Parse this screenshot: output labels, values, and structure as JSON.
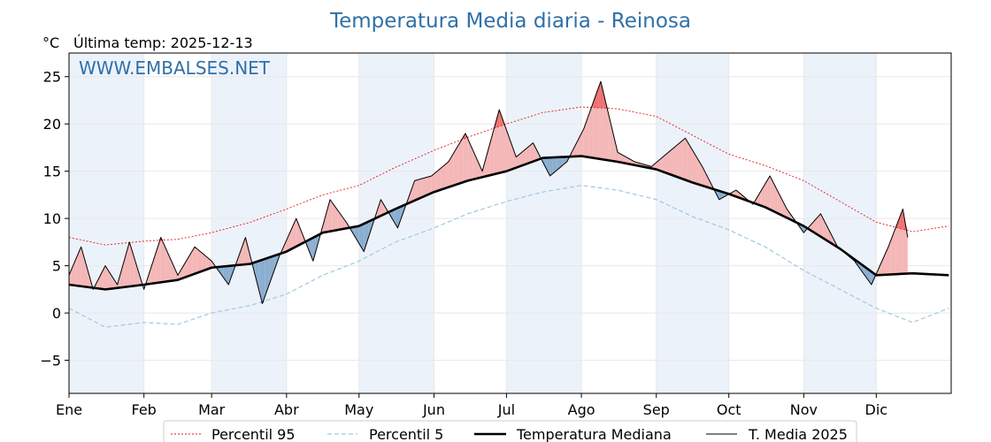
{
  "chart_data": {
    "type": "line",
    "title": "Temperatura Media diaria - Reinosa",
    "ylabel": "°C",
    "subtitle": "Última temp: 2025-12-13",
    "watermark": "WWW.EMBALSES.NET",
    "ylim": [
      -8.5,
      27.5
    ],
    "xlim_days": [
      0,
      365
    ],
    "y_ticks": [
      -5,
      0,
      5,
      10,
      15,
      20,
      25
    ],
    "y_tick_labels": [
      "−5",
      "0",
      "5",
      "10",
      "15",
      "20",
      "25"
    ],
    "x_ticks": [
      "Ene",
      "Feb",
      "Mar",
      "Abr",
      "May",
      "Jun",
      "Jul",
      "Ago",
      "Sep",
      "Oct",
      "Nov",
      "Dic"
    ],
    "x_tick_days": [
      0,
      31,
      59,
      90,
      120,
      151,
      181,
      212,
      243,
      273,
      304,
      334
    ],
    "grid": true,
    "shaded_months": [
      "Ene",
      "Mar",
      "May",
      "Jul",
      "Sep",
      "Nov"
    ],
    "legend_position": "bottom",
    "colors": {
      "p95": "#e41a1c",
      "p5": "#9ecae1",
      "median": "#000000",
      "mean": "#000000",
      "above": "#f4b6b6",
      "above_extreme": "#f07070",
      "below": "#8aaed0",
      "below_extreme": "#1f5f9a",
      "band": "#dfeaf6"
    },
    "series": [
      {
        "name": "Percentil 95",
        "style": "dotted",
        "x": [
          0,
          15,
          31,
          45,
          59,
          75,
          90,
          105,
          120,
          135,
          151,
          165,
          181,
          196,
          212,
          227,
          243,
          258,
          273,
          288,
          304,
          319,
          334,
          349,
          364
        ],
        "y": [
          8.0,
          7.2,
          7.6,
          7.8,
          8.5,
          9.6,
          11.0,
          12.5,
          13.5,
          15.4,
          17.2,
          18.6,
          20.0,
          21.2,
          21.8,
          21.6,
          20.8,
          18.8,
          16.8,
          15.6,
          14.0,
          11.8,
          9.6,
          8.6,
          9.2
        ]
      },
      {
        "name": "Percentil 5",
        "style": "dashed",
        "x": [
          0,
          15,
          31,
          45,
          59,
          75,
          90,
          105,
          120,
          135,
          151,
          165,
          181,
          196,
          212,
          227,
          243,
          258,
          273,
          288,
          304,
          319,
          334,
          349,
          364
        ],
        "y": [
          0.5,
          -1.5,
          -1.0,
          -1.2,
          0.0,
          0.8,
          2.0,
          4.0,
          5.5,
          7.5,
          9.0,
          10.5,
          11.8,
          12.8,
          13.5,
          13.0,
          12.0,
          10.2,
          8.8,
          7.0,
          4.5,
          2.5,
          0.5,
          -1.0,
          0.5
        ]
      },
      {
        "name": "Temperatura Mediana",
        "style": "solid-thick",
        "x": [
          0,
          15,
          31,
          45,
          59,
          75,
          90,
          105,
          120,
          135,
          151,
          165,
          181,
          196,
          212,
          227,
          243,
          258,
          273,
          288,
          304,
          319,
          334,
          349,
          364
        ],
        "y": [
          3.0,
          2.5,
          3.0,
          3.5,
          4.8,
          5.2,
          6.5,
          8.5,
          9.2,
          11.0,
          12.8,
          14.0,
          15.0,
          16.4,
          16.6,
          16.0,
          15.2,
          13.8,
          12.6,
          11.2,
          9.2,
          6.8,
          4.0,
          4.2,
          4.0
        ]
      },
      {
        "name": "T. Media 2025",
        "style": "solid-thin",
        "x": [
          0,
          5,
          10,
          15,
          20,
          25,
          31,
          38,
          45,
          52,
          59,
          66,
          73,
          80,
          87,
          94,
          101,
          108,
          115,
          122,
          129,
          136,
          143,
          150,
          157,
          164,
          171,
          178,
          185,
          192,
          199,
          206,
          213,
          220,
          227,
          234,
          241,
          248,
          255,
          262,
          269,
          276,
          283,
          290,
          297,
          304,
          311,
          318,
          325,
          332,
          339,
          345,
          347
        ],
        "y": [
          4.0,
          7.0,
          2.5,
          5.0,
          3.0,
          7.5,
          2.5,
          8.0,
          4.0,
          7.0,
          5.5,
          3.0,
          8.0,
          1.0,
          6.0,
          10.0,
          5.5,
          12.0,
          9.5,
          6.5,
          12.0,
          9.0,
          14.0,
          14.5,
          16.0,
          19.0,
          15.0,
          21.5,
          16.5,
          18.0,
          14.5,
          16.0,
          19.5,
          24.5,
          17.0,
          16.0,
          15.5,
          17.0,
          18.5,
          15.5,
          12.0,
          13.0,
          11.5,
          14.5,
          11.0,
          8.5,
          10.5,
          7.0,
          5.5,
          3.0,
          7.0,
          11.0,
          8.0
        ]
      }
    ]
  },
  "legend": {
    "p95": "Percentil 95",
    "p5": "Percentil 5",
    "median": "Temperatura Mediana",
    "mean": "T. Media 2025"
  }
}
